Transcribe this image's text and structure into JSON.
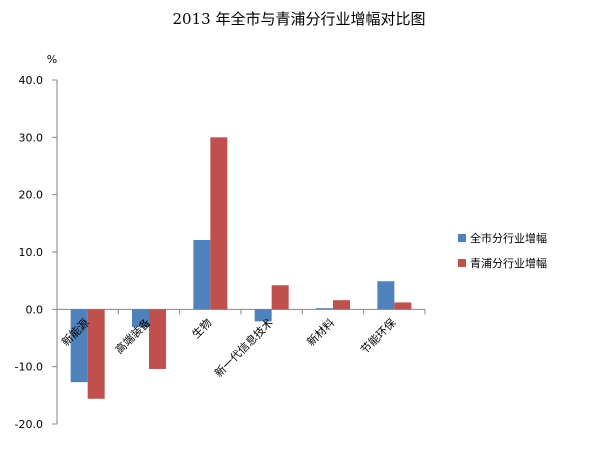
{
  "chart_data": {
    "type": "bar",
    "title": "2013 年全市与青浦分行业增幅对比图",
    "ylabel": "%",
    "xlabel": "",
    "ylim": [
      -20,
      40
    ],
    "yticks": [
      "40.0",
      "30.0",
      "20.0",
      "10.0",
      "0.0",
      "-10.0",
      "-20.0"
    ],
    "grid": false,
    "legend_position": "right",
    "categories": [
      "新能源",
      "高端装备",
      "生物",
      "新一代信息技术",
      "新材料",
      "节能环保"
    ],
    "series": [
      {
        "name": "全市分行业增幅",
        "color": "#4F81BD",
        "values": [
          -12.7,
          -3.1,
          12.1,
          -2.1,
          0.2,
          4.9
        ]
      },
      {
        "name": "青浦分行业增幅",
        "color": "#C0504D",
        "values": [
          -15.6,
          -10.4,
          30.0,
          4.2,
          1.6,
          1.2
        ]
      }
    ]
  }
}
